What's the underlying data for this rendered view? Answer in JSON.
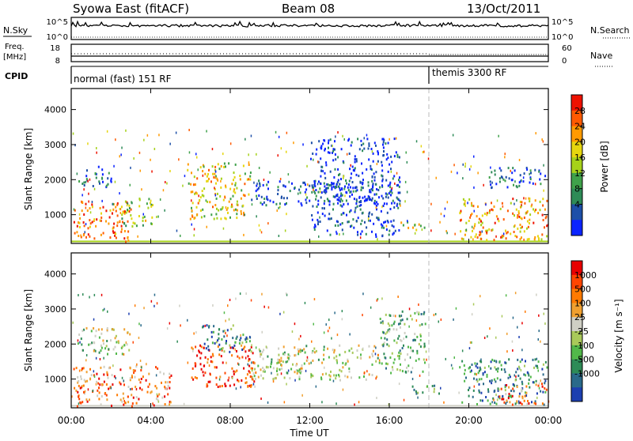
{
  "header": {
    "title": "Syowa East (fitACF)",
    "beam": "Beam 08",
    "date": "13/Oct/2011"
  },
  "top_panels": {
    "nsky_label": "N.Sky",
    "nsearch_label": "N.Search",
    "nsky_ticks": [
      "10^5",
      "10^0"
    ],
    "nsearch_ticks": [
      "10^5",
      "10^0"
    ],
    "freq_label": "Freq.",
    "freq_unit": "[MHz]",
    "freq_ticks": [
      "18",
      "8"
    ],
    "nave_label": "Nave",
    "nave_ticks": [
      "60",
      "0"
    ],
    "cpid_label": "CPID",
    "cpid_segments": [
      {
        "label": "normal (fast) 151 RF",
        "start_hour": 0,
        "end_hour": 18
      },
      {
        "label": "themis 3300 RF",
        "start_hour": 18,
        "end_hour": 24
      }
    ]
  },
  "xaxis": {
    "label": "Time UT",
    "ticks": [
      "00:00",
      "04:00",
      "08:00",
      "12:00",
      "16:00",
      "20:00",
      "00:00"
    ],
    "hours": [
      0,
      4,
      8,
      12,
      16,
      20,
      24
    ]
  },
  "power_panel": {
    "ylabel": "Slant Range [km]",
    "yticks": [
      1000,
      2000,
      3000,
      4000
    ],
    "ylim": [
      180,
      4600
    ],
    "colorbar_label": "Power [dB]",
    "colorbar_ticks": [
      "28",
      "24",
      "20",
      "16",
      "12",
      "8",
      "4"
    ],
    "colors": [
      "#0b24ff",
      "#1d4fa8",
      "#2e8b57",
      "#3fa14a",
      "#a6d11a",
      "#e6d60f",
      "#ff9a00",
      "#ff5a00",
      "#ee1100"
    ]
  },
  "velocity_panel": {
    "ylabel": "Slant Range [km]",
    "yticks": [
      1000,
      2000,
      3000,
      4000
    ],
    "ylim": [
      180,
      4600
    ],
    "colorbar_label": "Velocity [m s⁻¹]",
    "colorbar_ticks": [
      "1000",
      "500",
      "100",
      "25",
      "-25",
      "-100",
      "-500",
      "-1000"
    ],
    "colors": [
      "#1c3fb0",
      "#2a6a8a",
      "#2e8b57",
      "#52b84a",
      "#a9c95a",
      "#cfcfc4",
      "#f0a030",
      "#ff7a00",
      "#ff4500",
      "#e80000"
    ]
  },
  "chart_data": [
    {
      "type": "heatmap",
      "title": "Power",
      "xlabel": "Time UT",
      "ylabel": "Slant Range [km]",
      "xlim": [
        0,
        24
      ],
      "ylim": [
        180,
        4600
      ],
      "colorbar": "Power [dB]",
      "regions": [
        {
          "t0": 0.1,
          "t1": 3.0,
          "r0": 250,
          "r1": 1400,
          "level": 0.8
        },
        {
          "t0": 0.3,
          "t1": 2.0,
          "r0": 1800,
          "r1": 2400,
          "level": 0.2
        },
        {
          "t0": 2.5,
          "t1": 4.2,
          "r0": 700,
          "r1": 1500,
          "level": 0.5
        },
        {
          "t0": 5.8,
          "t1": 9.0,
          "r0": 900,
          "r1": 2500,
          "level": 0.6
        },
        {
          "t0": 9.0,
          "t1": 16.5,
          "r0": 1300,
          "r1": 2000,
          "level": 0.15
        },
        {
          "t0": 12.0,
          "t1": 16.5,
          "r0": 400,
          "r1": 3200,
          "level": 0.1
        },
        {
          "t0": 16.5,
          "t1": 17.8,
          "r0": 550,
          "r1": 850,
          "level": 0.6
        },
        {
          "t0": 19.5,
          "t1": 23.9,
          "r0": 300,
          "r1": 1500,
          "level": 0.7
        },
        {
          "t0": 21.0,
          "t1": 23.9,
          "r0": 1800,
          "r1": 2400,
          "level": 0.2
        }
      ]
    },
    {
      "type": "heatmap",
      "title": "Velocity",
      "xlabel": "Time UT",
      "ylabel": "Slant Range [km]",
      "xlim": [
        0,
        24
      ],
      "ylim": [
        180,
        4600
      ],
      "colorbar": "Velocity [m s-1]",
      "regions": [
        {
          "t0": 0.1,
          "t1": 5.0,
          "r0": 250,
          "r1": 1400,
          "level": 0.75
        },
        {
          "t0": 0.3,
          "t1": 3.0,
          "r0": 1700,
          "r1": 2500,
          "level": 0.45
        },
        {
          "t0": 6.0,
          "t1": 9.2,
          "r0": 800,
          "r1": 2000,
          "level": 0.9
        },
        {
          "t0": 6.5,
          "t1": 9.0,
          "r0": 1800,
          "r1": 2600,
          "level": 0.2
        },
        {
          "t0": 9.0,
          "t1": 15.5,
          "r0": 1000,
          "r1": 2000,
          "level": 0.5
        },
        {
          "t0": 15.5,
          "t1": 17.8,
          "r0": 1200,
          "r1": 3000,
          "level": 0.35
        },
        {
          "t0": 17.0,
          "t1": 18.5,
          "r0": 550,
          "r1": 850,
          "level": 0.3
        },
        {
          "t0": 19.5,
          "t1": 23.9,
          "r0": 300,
          "r1": 1600,
          "level": 0.2
        },
        {
          "t0": 21.5,
          "t1": 23.9,
          "r0": 300,
          "r1": 900,
          "level": 0.8
        }
      ]
    }
  ]
}
